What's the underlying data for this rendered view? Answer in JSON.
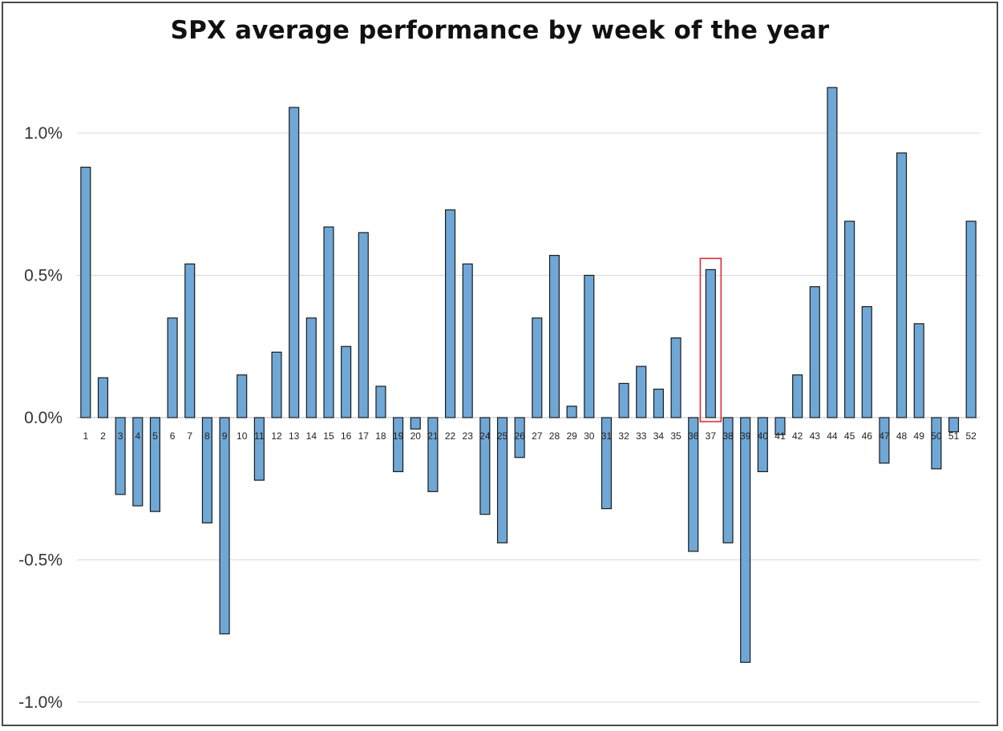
{
  "chart_data": {
    "type": "bar",
    "title": "SPX average performance by week of the year",
    "xlabel": "",
    "ylabel": "",
    "ylim": [
      -1.0,
      1.2
    ],
    "yticks": [
      1.0,
      0.5,
      0.0,
      -0.5,
      -1.0
    ],
    "ytick_labels": [
      "1.0%",
      "0.5%",
      "0.0%",
      "-0.5%",
      "-1.0%"
    ],
    "grid": true,
    "legend": "none",
    "bar_color": "#6fa8d6",
    "bar_edge_color": "#1a1a1a",
    "highlight_color": "#e0202a",
    "highlight_category": "37",
    "categories": [
      "1",
      "2",
      "3",
      "4",
      "5",
      "6",
      "7",
      "8",
      "9",
      "10",
      "11",
      "12",
      "13",
      "14",
      "15",
      "16",
      "17",
      "18",
      "19",
      "20",
      "21",
      "22",
      "23",
      "24",
      "25",
      "26",
      "27",
      "28",
      "29",
      "30",
      "31",
      "32",
      "33",
      "34",
      "35",
      "36",
      "37",
      "38",
      "39",
      "40",
      "41",
      "42",
      "43",
      "44",
      "45",
      "46",
      "47",
      "48",
      "49",
      "50",
      "51",
      "52"
    ],
    "values": [
      0.88,
      0.14,
      -0.27,
      -0.31,
      -0.33,
      0.35,
      0.54,
      -0.37,
      -0.76,
      0.15,
      -0.22,
      0.23,
      1.09,
      0.35,
      0.67,
      0.25,
      0.65,
      0.11,
      -0.19,
      -0.04,
      -0.26,
      0.73,
      0.54,
      -0.34,
      -0.44,
      -0.14,
      0.35,
      0.57,
      0.04,
      0.5,
      -0.32,
      0.12,
      0.18,
      0.1,
      0.28,
      -0.47,
      0.52,
      -0.44,
      -0.86,
      -0.19,
      -0.06,
      0.15,
      0.46,
      1.16,
      0.69,
      0.39,
      -0.16,
      0.93,
      0.33,
      -0.18,
      -0.05,
      0.69
    ]
  }
}
